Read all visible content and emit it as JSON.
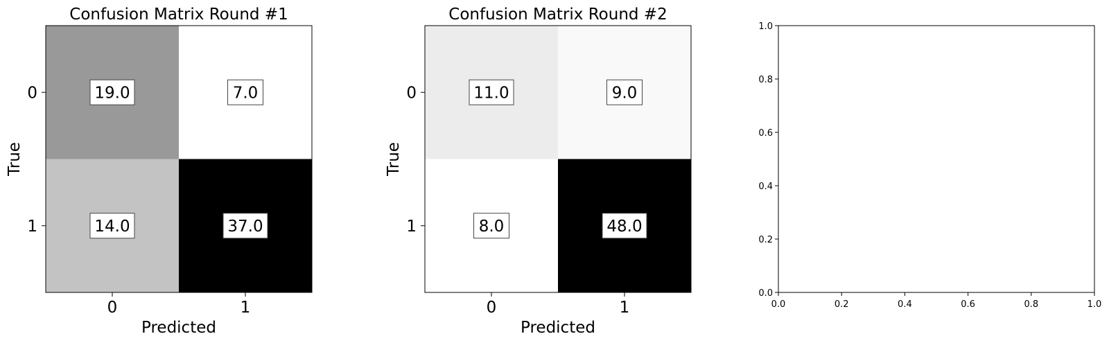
{
  "chart_data": [
    {
      "type": "heatmap",
      "title": "Confusion Matrix Round #1",
      "xlabel": "Predicted",
      "ylabel": "True",
      "x_categories": [
        "0",
        "1"
      ],
      "y_categories": [
        "0",
        "1"
      ],
      "values": [
        [
          19.0,
          7.0
        ],
        [
          14.0,
          37.0
        ]
      ],
      "value_labels": [
        [
          "19.0",
          "7.0"
        ],
        [
          "14.0",
          "37.0"
        ]
      ],
      "colormap": "greys",
      "vmin": 7.0,
      "vmax": 37.0
    },
    {
      "type": "heatmap",
      "title": "Confusion Matrix Round #2",
      "xlabel": "Predicted",
      "ylabel": "True",
      "x_categories": [
        "0",
        "1"
      ],
      "y_categories": [
        "0",
        "1"
      ],
      "values": [
        [
          11.0,
          9.0
        ],
        [
          8.0,
          48.0
        ]
      ],
      "value_labels": [
        [
          "11.0",
          "9.0"
        ],
        [
          "8.0",
          "48.0"
        ]
      ],
      "colormap": "greys",
      "vmin": 8.0,
      "vmax": 48.0
    },
    {
      "type": "scatter",
      "title": "",
      "xlabel": "",
      "ylabel": "",
      "xlim": [
        0.0,
        1.0
      ],
      "ylim": [
        0.0,
        1.0
      ],
      "x_ticks": [
        "0.0",
        "0.2",
        "0.4",
        "0.6",
        "0.8",
        "1.0"
      ],
      "y_ticks": [
        "0.0",
        "0.2",
        "0.4",
        "0.6",
        "0.8",
        "1.0"
      ],
      "series": []
    }
  ]
}
